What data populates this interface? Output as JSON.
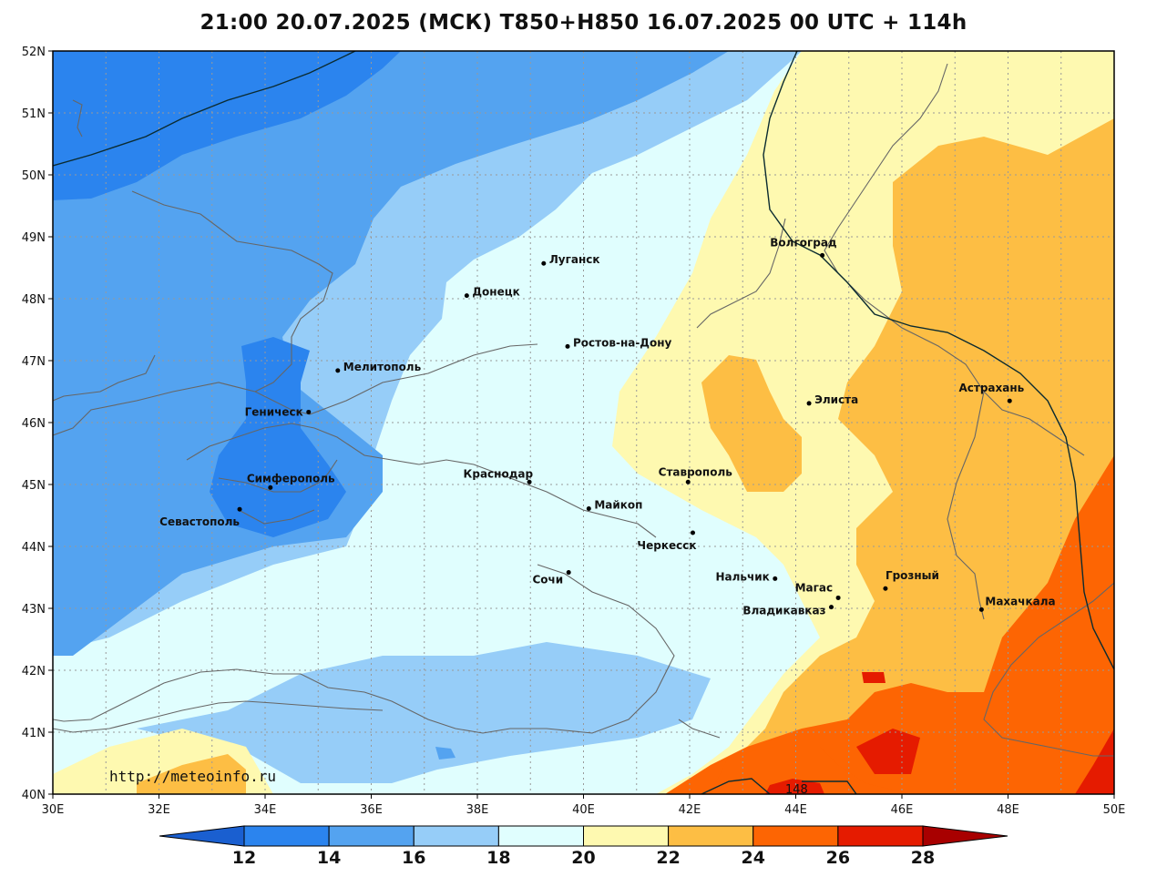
{
  "title": "21:00 20.07.2025 (МСК) T850+H850 16.07.2025 00 UTC + 114h",
  "watermark": "http://meteoinfo.ru",
  "map": {
    "lon_range": [
      30,
      50
    ],
    "lat_range": [
      40,
      52
    ],
    "lon_ticks": [
      "30E",
      "32E",
      "34E",
      "36E",
      "38E",
      "40E",
      "42E",
      "44E",
      "46E",
      "48E",
      "50E"
    ],
    "lat_ticks": [
      "52N",
      "51N",
      "50N",
      "49N",
      "48N",
      "47N",
      "46N",
      "45N",
      "44N",
      "43N",
      "42N",
      "41N",
      "40N"
    ],
    "contour_label": "148",
    "colors": {
      "t12_14": "#2b84ee",
      "t14_16": "#54a3f0",
      "t16_18": "#96cdf8",
      "t18_20": "#e0fefe",
      "t20_22": "#fef9b0",
      "t22_24": "#fdbe44",
      "t24_26": "#fd6503",
      "t26_28": "#e51b00",
      "coast": "#666666",
      "contour": "#0b2b30"
    }
  },
  "cities": [
    {
      "name": "Луганск",
      "lon": 39.25,
      "lat": 48.57
    },
    {
      "name": "Донецк",
      "lon": 37.8,
      "lat": 48.05
    },
    {
      "name": "Волгоград",
      "lon": 44.5,
      "lat": 48.7
    },
    {
      "name": "Ростов-на-Дону",
      "lon": 39.7,
      "lat": 47.23
    },
    {
      "name": "Мелитополь",
      "lon": 35.37,
      "lat": 46.84
    },
    {
      "name": "Геническ",
      "lon": 34.82,
      "lat": 46.17
    },
    {
      "name": "Элиста",
      "lon": 44.25,
      "lat": 46.31
    },
    {
      "name": "Астрахань",
      "lon": 48.03,
      "lat": 46.35
    },
    {
      "name": "Симферополь",
      "lon": 34.1,
      "lat": 44.95
    },
    {
      "name": "Краснодар",
      "lon": 38.98,
      "lat": 45.04
    },
    {
      "name": "Ставрополь",
      "lon": 41.97,
      "lat": 45.04
    },
    {
      "name": "Севастополь",
      "lon": 33.52,
      "lat": 44.6
    },
    {
      "name": "Майкоп",
      "lon": 40.1,
      "lat": 44.61
    },
    {
      "name": "Черкесск",
      "lon": 42.06,
      "lat": 44.22
    },
    {
      "name": "Сочи",
      "lon": 39.72,
      "lat": 43.58
    },
    {
      "name": "Нальчик",
      "lon": 43.61,
      "lat": 43.48
    },
    {
      "name": "Магас",
      "lon": 44.8,
      "lat": 43.17
    },
    {
      "name": "Грозный",
      "lon": 45.69,
      "lat": 43.32
    },
    {
      "name": "Владикавказ",
      "lon": 44.67,
      "lat": 43.02
    },
    {
      "name": "Махачкала",
      "lon": 47.5,
      "lat": 42.98
    }
  ],
  "legend": {
    "labels": [
      "12",
      "14",
      "16",
      "18",
      "20",
      "22",
      "24",
      "26",
      "28"
    ],
    "colors": [
      "#1a5fd0",
      "#2b84ee",
      "#54a3f0",
      "#96cdf8",
      "#e0fefe",
      "#fef9b0",
      "#fdbe44",
      "#fd6503",
      "#e51b00",
      "#a80000"
    ]
  }
}
